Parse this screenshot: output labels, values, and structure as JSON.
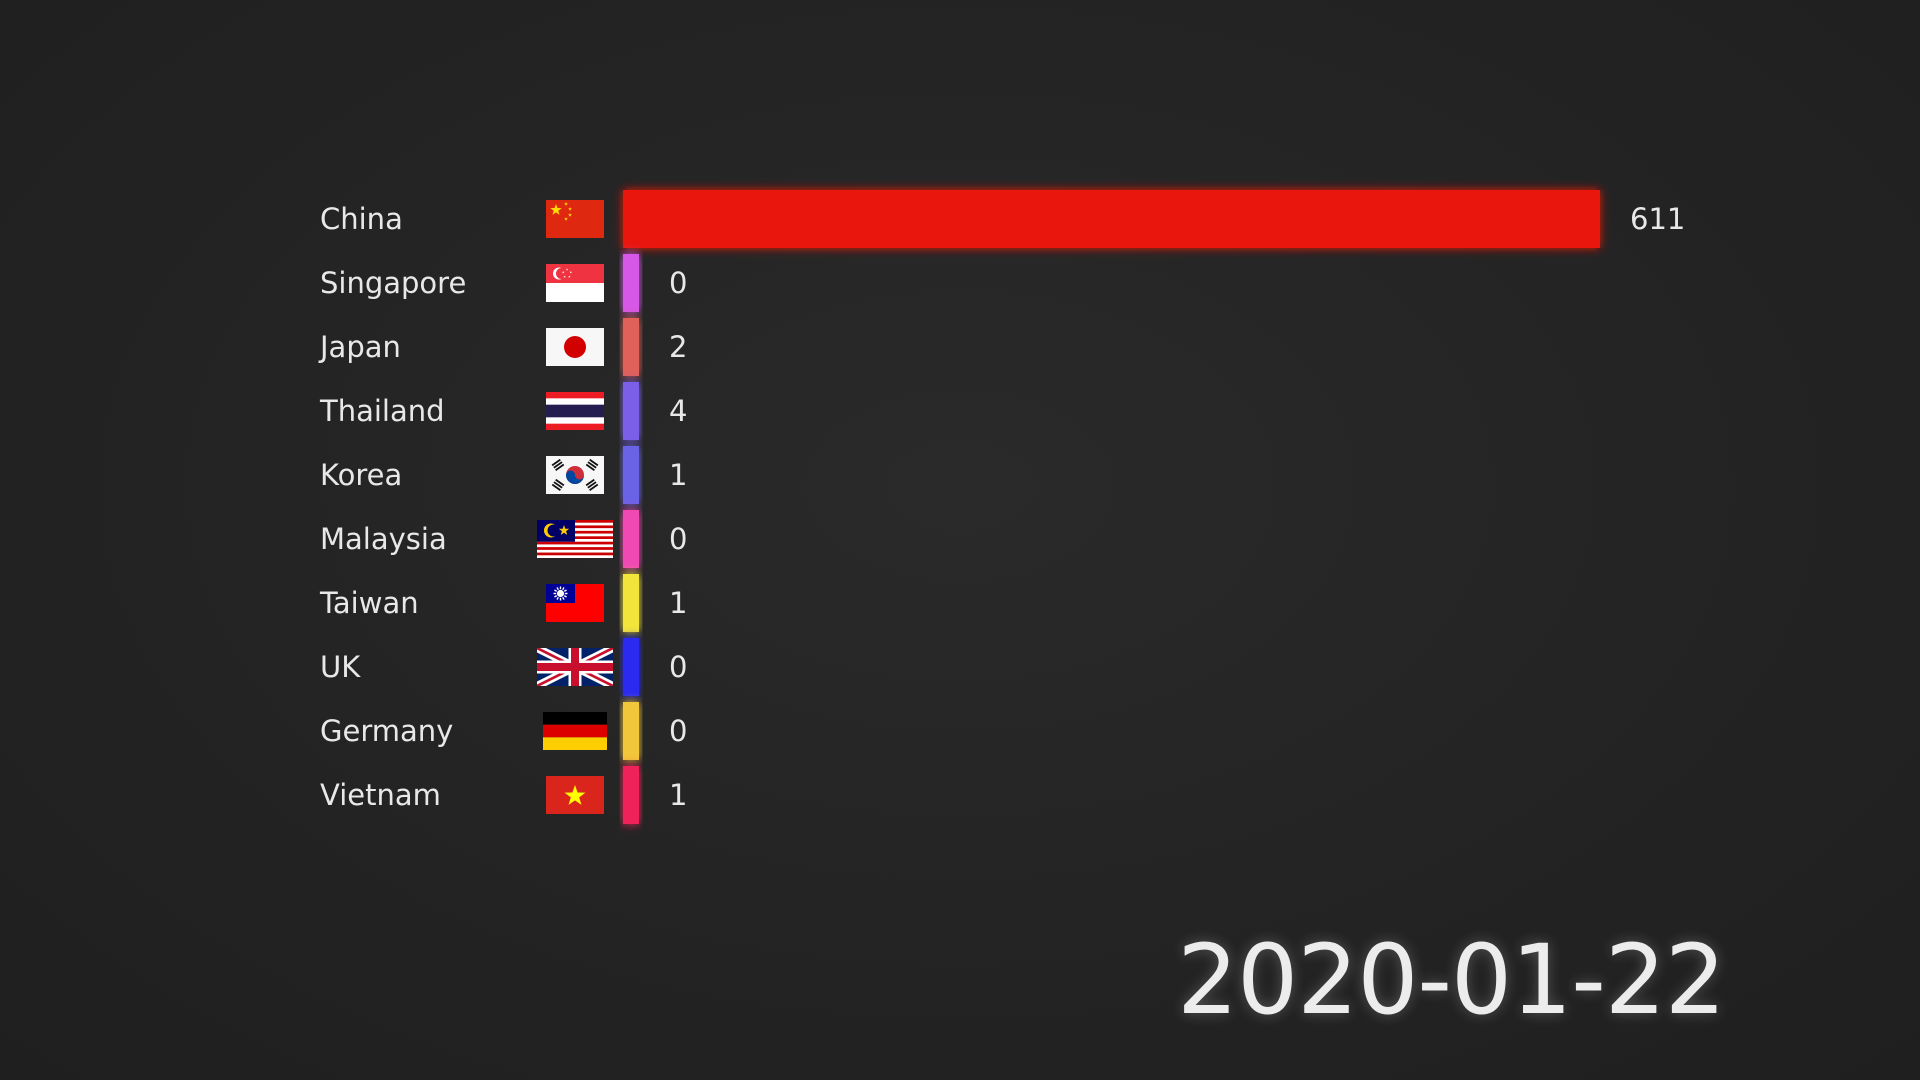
{
  "date": "2020-01-22",
  "chart_data": {
    "type": "bar",
    "orientation": "horizontal",
    "categories": [
      "China",
      "Singapore",
      "Japan",
      "Thailand",
      "Korea",
      "Malaysia",
      "Taiwan",
      "UK",
      "Germany",
      "Vietnam"
    ],
    "values": [
      611,
      0,
      2,
      4,
      1,
      0,
      1,
      0,
      0,
      1
    ],
    "colors": [
      "#e8140a",
      "#d658e6",
      "#e0605a",
      "#7b5fe8",
      "#6a63e6",
      "#f048b4",
      "#f2e43a",
      "#2a2cf0",
      "#f2c63a",
      "#f0205a"
    ],
    "flags": [
      "china-flag",
      "singapore-flag",
      "japan-flag",
      "thailand-flag",
      "korea-flag",
      "malaysia-flag",
      "taiwan-flag",
      "uk-flag",
      "germany-flag",
      "vietnam-flag"
    ],
    "xlim": [
      0,
      611
    ],
    "grid": false,
    "legend": "none"
  }
}
